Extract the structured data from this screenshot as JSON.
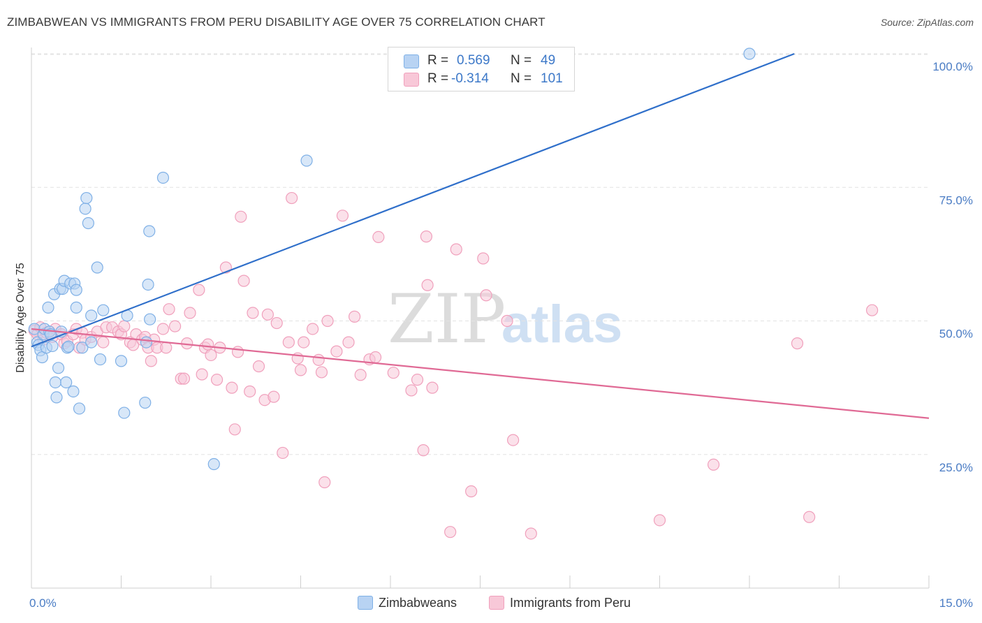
{
  "chart_data": {
    "type": "scatter",
    "title": "ZIMBABWEAN VS IMMIGRANTS FROM PERU DISABILITY AGE OVER 75 CORRELATION CHART",
    "source": "Source: ZipAtlas.com",
    "xlabel": "",
    "ylabel": "Disability Age Over 75",
    "xlim": [
      0,
      15
    ],
    "ylim": [
      0,
      105
    ],
    "x_tick_labels": [
      "0.0%",
      "15.0%"
    ],
    "y_ticks": [
      {
        "value": 25,
        "label": "25.0%"
      },
      {
        "value": 50,
        "label": "50.0%"
      },
      {
        "value": 75,
        "label": "75.0%"
      },
      {
        "value": 100,
        "label": "100.0%"
      }
    ],
    "watermark": "ZIPatlas",
    "legend": [
      {
        "r_label": "R =",
        "r_value": "0.569",
        "n_label": "N =",
        "n_value": "49"
      },
      {
        "r_label": "R =",
        "r_value": "-0.314",
        "n_label": "N =",
        "n_value": "101"
      }
    ],
    "series": [
      {
        "name": "Zimbabweans",
        "color": "#7fb0e6",
        "fill": "#b8d3f3",
        "line_color": "#2f6fca",
        "trend": {
          "x": [
            0.0,
            12.75
          ],
          "y": [
            45.2,
            100.0
          ]
        },
        "points": [
          [
            0.05,
            48.5
          ],
          [
            0.1,
            46.0
          ],
          [
            0.12,
            45.5
          ],
          [
            0.15,
            44.5
          ],
          [
            0.18,
            43.2
          ],
          [
            0.2,
            47.5
          ],
          [
            0.22,
            48.5
          ],
          [
            0.25,
            45.0
          ],
          [
            0.28,
            52.5
          ],
          [
            0.3,
            48.0
          ],
          [
            0.32,
            47.5
          ],
          [
            0.35,
            45.3
          ],
          [
            0.38,
            55.0
          ],
          [
            0.4,
            38.5
          ],
          [
            0.42,
            35.7
          ],
          [
            0.45,
            41.2
          ],
          [
            0.48,
            56.0
          ],
          [
            0.5,
            48.0
          ],
          [
            0.52,
            56.0
          ],
          [
            0.55,
            57.5
          ],
          [
            0.58,
            38.5
          ],
          [
            0.6,
            45.0
          ],
          [
            0.62,
            45.2
          ],
          [
            0.65,
            57.0
          ],
          [
            0.7,
            36.8
          ],
          [
            0.72,
            57.0
          ],
          [
            0.75,
            52.5
          ],
          [
            0.75,
            55.8
          ],
          [
            0.8,
            33.6
          ],
          [
            0.85,
            45.0
          ],
          [
            0.9,
            71.0
          ],
          [
            0.92,
            73.0
          ],
          [
            0.95,
            68.3
          ],
          [
            1.0,
            51.0
          ],
          [
            1.0,
            46.0
          ],
          [
            1.1,
            60.0
          ],
          [
            1.15,
            42.8
          ],
          [
            1.2,
            52.0
          ],
          [
            1.5,
            42.5
          ],
          [
            1.55,
            32.8
          ],
          [
            1.6,
            51.0
          ],
          [
            1.9,
            34.7
          ],
          [
            1.92,
            46.0
          ],
          [
            1.95,
            56.8
          ],
          [
            1.97,
            66.8
          ],
          [
            1.98,
            50.3
          ],
          [
            2.2,
            76.8
          ],
          [
            3.05,
            23.2
          ],
          [
            4.6,
            80.0
          ],
          [
            12.0,
            100.0
          ]
        ]
      },
      {
        "name": "Immigrants from Peru",
        "color": "#f0a0bc",
        "fill": "#f8c8d8",
        "line_color": "#e06a95",
        "trend": {
          "x": [
            0.0,
            15.0
          ],
          "y": [
            48.5,
            31.8
          ]
        },
        "points": [
          [
            0.05,
            48.2
          ],
          [
            0.1,
            47.5
          ],
          [
            0.15,
            48.8
          ],
          [
            0.2,
            46.5
          ],
          [
            0.25,
            47.8
          ],
          [
            0.3,
            48.0
          ],
          [
            0.35,
            47.0
          ],
          [
            0.4,
            48.5
          ],
          [
            0.5,
            47.5
          ],
          [
            0.55,
            45.8
          ],
          [
            0.6,
            46.2
          ],
          [
            0.7,
            47.5
          ],
          [
            0.75,
            48.5
          ],
          [
            0.8,
            45.0
          ],
          [
            0.85,
            47.8
          ],
          [
            0.9,
            46.5
          ],
          [
            1.0,
            47.0
          ],
          [
            1.1,
            48.0
          ],
          [
            1.2,
            46.0
          ],
          [
            1.25,
            48.8
          ],
          [
            1.35,
            48.8
          ],
          [
            1.45,
            48.0
          ],
          [
            1.5,
            47.5
          ],
          [
            1.55,
            49.0
          ],
          [
            1.65,
            46.0
          ],
          [
            1.7,
            45.5
          ],
          [
            1.75,
            47.5
          ],
          [
            1.85,
            46.5
          ],
          [
            1.9,
            47.0
          ],
          [
            1.95,
            45.0
          ],
          [
            2.0,
            42.5
          ],
          [
            2.05,
            46.5
          ],
          [
            2.1,
            45.0
          ],
          [
            2.2,
            48.5
          ],
          [
            2.25,
            45.0
          ],
          [
            2.3,
            52.2
          ],
          [
            2.4,
            49.0
          ],
          [
            2.5,
            39.2
          ],
          [
            2.55,
            39.2
          ],
          [
            2.6,
            45.8
          ],
          [
            2.65,
            51.5
          ],
          [
            2.8,
            55.8
          ],
          [
            2.85,
            40.0
          ],
          [
            2.9,
            45.0
          ],
          [
            2.95,
            45.6
          ],
          [
            3.0,
            43.6
          ],
          [
            3.1,
            39.0
          ],
          [
            3.15,
            45.0
          ],
          [
            3.25,
            60.0
          ],
          [
            3.35,
            37.5
          ],
          [
            3.4,
            29.7
          ],
          [
            3.45,
            44.2
          ],
          [
            3.5,
            69.5
          ],
          [
            3.55,
            57.5
          ],
          [
            3.65,
            36.8
          ],
          [
            3.7,
            51.5
          ],
          [
            3.8,
            41.5
          ],
          [
            3.9,
            35.2
          ],
          [
            3.95,
            51.2
          ],
          [
            4.05,
            35.8
          ],
          [
            4.1,
            49.6
          ],
          [
            4.2,
            25.3
          ],
          [
            4.3,
            46.0
          ],
          [
            4.35,
            73.0
          ],
          [
            4.45,
            43.0
          ],
          [
            4.5,
            40.8
          ],
          [
            4.55,
            46.0
          ],
          [
            4.7,
            48.5
          ],
          [
            4.8,
            42.7
          ],
          [
            4.85,
            40.4
          ],
          [
            4.9,
            19.8
          ],
          [
            4.95,
            50.0
          ],
          [
            5.1,
            44.3
          ],
          [
            5.2,
            69.7
          ],
          [
            5.3,
            46.0
          ],
          [
            5.4,
            50.8
          ],
          [
            5.5,
            39.9
          ],
          [
            5.65,
            42.8
          ],
          [
            5.75,
            43.2
          ],
          [
            5.8,
            65.7
          ],
          [
            6.05,
            40.3
          ],
          [
            6.35,
            37.0
          ],
          [
            6.45,
            39.0
          ],
          [
            6.55,
            25.8
          ],
          [
            6.6,
            65.8
          ],
          [
            6.62,
            56.7
          ],
          [
            6.7,
            37.5
          ],
          [
            7.0,
            10.5
          ],
          [
            7.1,
            63.4
          ],
          [
            7.35,
            18.1
          ],
          [
            7.55,
            61.7
          ],
          [
            7.6,
            54.8
          ],
          [
            7.95,
            50.0
          ],
          [
            8.05,
            27.7
          ],
          [
            8.35,
            10.2
          ],
          [
            10.5,
            12.7
          ],
          [
            11.4,
            23.1
          ],
          [
            12.8,
            45.8
          ],
          [
            13.0,
            13.3
          ],
          [
            14.05,
            52.0
          ]
        ]
      }
    ]
  },
  "bottom_legend": [
    "Zimbabweans",
    "Immigrants from Peru"
  ]
}
